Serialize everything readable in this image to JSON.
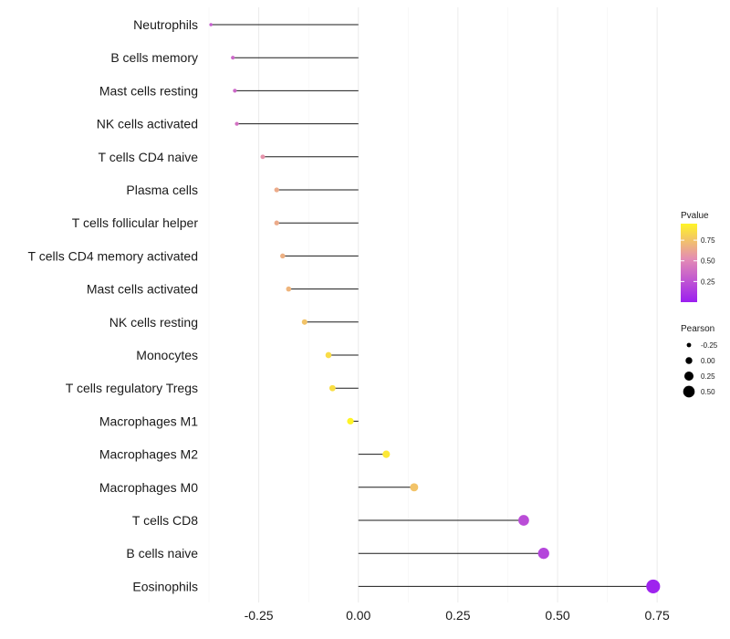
{
  "chart_data": {
    "type": "lollipop",
    "title": "",
    "xlabel": "",
    "ylabel": "",
    "xlim": [
      -0.375,
      0.745
    ],
    "x_ticks": [
      -0.25,
      0.0,
      0.25,
      0.5,
      0.75
    ],
    "x_tick_labels": [
      "-0.25",
      "0.00",
      "0.25",
      "0.50",
      "0.75"
    ],
    "categories": [
      "Neutrophils",
      "B cells memory",
      "Mast cells resting",
      "NK cells activated",
      "T cells CD4 naive",
      "Plasma cells",
      "T cells follicular helper",
      "T cells CD4 memory activated",
      "Mast cells activated",
      "NK cells resting",
      "Monocytes",
      "T cells regulatory  Tregs",
      "Macrophages M1",
      "Macrophages M2",
      "Macrophages M0",
      "T cells CD8",
      "B cells naive",
      "Eosinophils"
    ],
    "pearson": [
      -0.37,
      -0.315,
      -0.31,
      -0.305,
      -0.24,
      -0.205,
      -0.205,
      -0.19,
      -0.175,
      -0.135,
      -0.075,
      -0.065,
      -0.02,
      0.07,
      0.14,
      0.415,
      0.465,
      0.74
    ],
    "pvalue": [
      0.3,
      0.35,
      0.35,
      0.4,
      0.55,
      0.65,
      0.65,
      0.67,
      0.69,
      0.75,
      0.85,
      0.86,
      0.95,
      0.9,
      0.75,
      0.22,
      0.18,
      0.02
    ],
    "legend_pvalue": {
      "title": "Pvalue",
      "ticks": [
        0.25,
        0.5,
        0.75
      ],
      "tick_labels": [
        "0.25",
        "0.50",
        "0.75"
      ],
      "range": [
        0.0,
        0.95
      ],
      "color_low": "#9b1ff0",
      "color_mid": "#e48cb4",
      "color_high": "#fff426"
    },
    "legend_pearson": {
      "title": "Pearson",
      "values": [
        -0.25,
        0.0,
        0.25,
        0.5
      ],
      "labels": [
        "-0.25",
        "0.00",
        "0.25",
        "0.50"
      ]
    }
  }
}
